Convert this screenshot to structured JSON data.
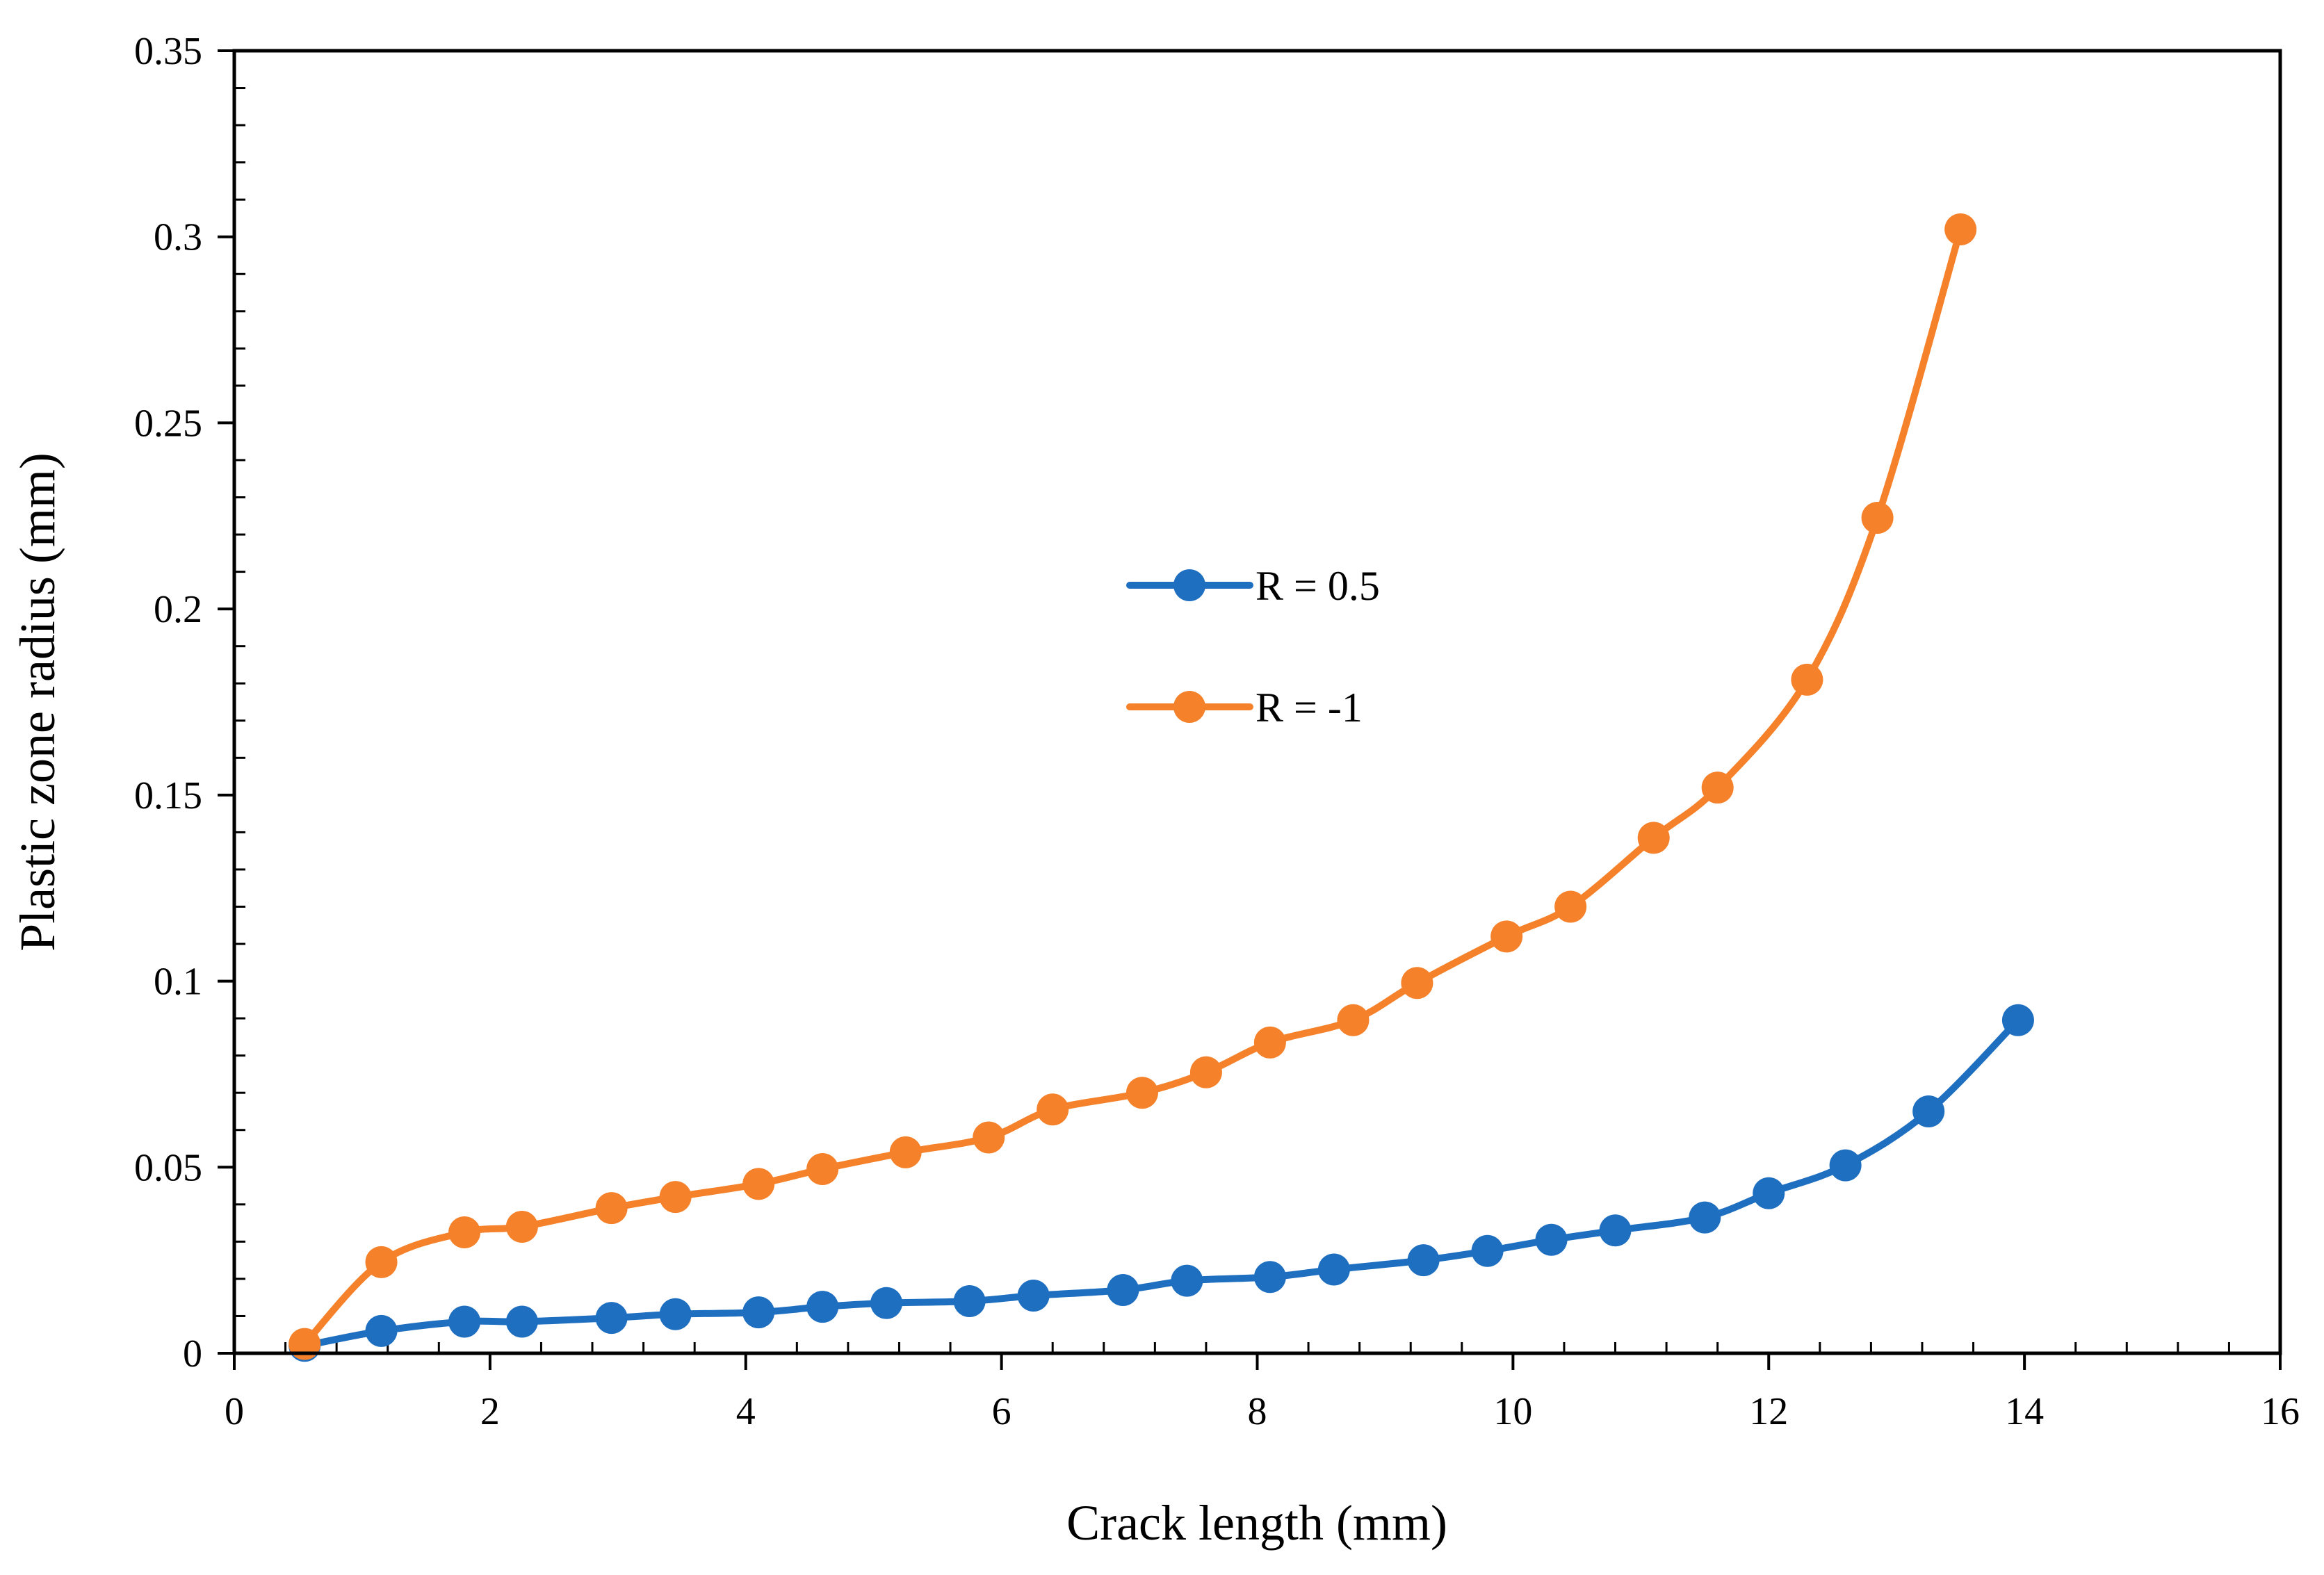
{
  "chart_data": {
    "type": "line",
    "title": "",
    "xlabel": "Crack length (mm)",
    "ylabel": "Plastic zone radius (mm)",
    "xlim": [
      0,
      16
    ],
    "ylim": [
      0,
      0.35
    ],
    "grid": false,
    "legend_position": "center",
    "x_ticks": [
      0,
      2,
      4,
      6,
      8,
      10,
      12,
      14,
      16
    ],
    "x_tick_labels": [
      "0",
      "2",
      "4",
      "6",
      "8",
      "10",
      "12",
      "14",
      "16"
    ],
    "y_ticks": [
      0,
      0.05,
      0.1,
      0.15,
      0.2,
      0.25,
      0.3,
      0.35
    ],
    "y_tick_labels": [
      "0",
      "0.05",
      "0.1",
      "0.15",
      "0.2",
      "0.25",
      "0.3",
      "0.35"
    ],
    "series": [
      {
        "name": "R = 0.5",
        "color": "#1f6fc1",
        "x": [
          0.55,
          1.15,
          1.8,
          2.25,
          2.95,
          3.45,
          4.1,
          4.6,
          5.1,
          5.75,
          6.25,
          6.95,
          7.45,
          8.1,
          8.6,
          9.3,
          9.8,
          10.3,
          10.8,
          11.5,
          12.0,
          12.6,
          13.25,
          13.95
        ],
        "y": [
          0.002,
          0.006,
          0.0085,
          0.0085,
          0.0095,
          0.0105,
          0.011,
          0.0125,
          0.0135,
          0.014,
          0.0155,
          0.017,
          0.0195,
          0.0205,
          0.0225,
          0.025,
          0.0275,
          0.0305,
          0.033,
          0.0365,
          0.043,
          0.0505,
          0.065,
          0.0895
        ]
      },
      {
        "name": "R = -1",
        "color": "#f5812a",
        "x": [
          0.55,
          1.15,
          1.8,
          2.25,
          2.95,
          3.45,
          4.1,
          4.6,
          5.25,
          5.9,
          6.4,
          7.1,
          7.6,
          8.1,
          8.75,
          9.25,
          9.95,
          10.45,
          11.1,
          11.6,
          12.3,
          12.85,
          13.5
        ],
        "y": [
          0.0025,
          0.0245,
          0.0325,
          0.034,
          0.039,
          0.042,
          0.0455,
          0.0495,
          0.054,
          0.058,
          0.0655,
          0.07,
          0.0755,
          0.0835,
          0.0895,
          0.0995,
          0.112,
          0.12,
          0.1385,
          0.152,
          0.181,
          0.2245,
          0.302
        ]
      }
    ]
  }
}
